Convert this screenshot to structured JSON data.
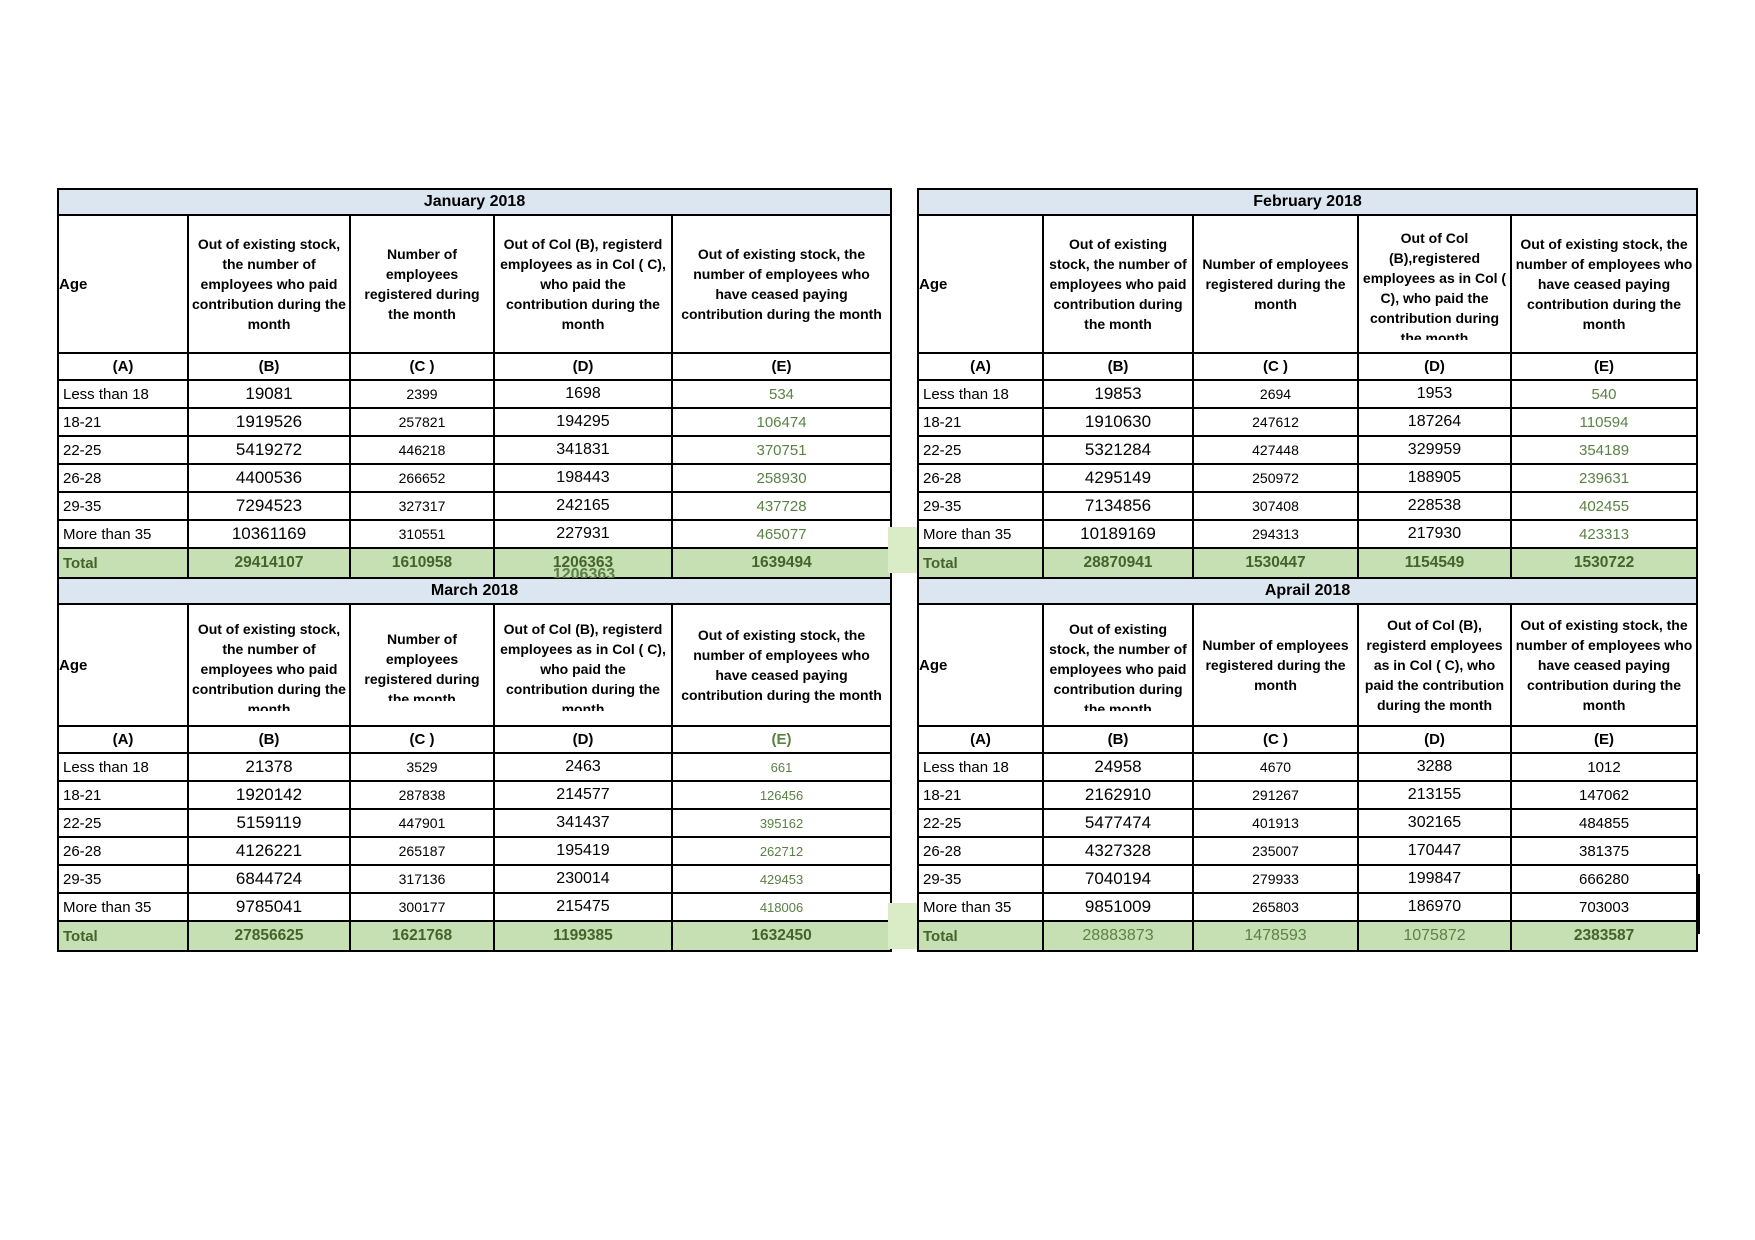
{
  "colors": {
    "title_bg": "#dce6f1",
    "total_bg": "#c6e0b4",
    "green_value_text": "#5a8144",
    "total_text": "#44632a",
    "border": "#000000"
  },
  "col_letters": [
    "(A)",
    "(B)",
    "(C )",
    "(D)",
    "(E)"
  ],
  "tables": [
    {
      "id": "tbl-january",
      "title": "January 2018",
      "headers": {
        "age": "Age",
        "b": "Out of existing stock, the number of employees who paid contribution during the month",
        "c": "Number of employees registered during the month",
        "d": "Out of Col (B), registerd employees as in Col ( C), who paid the contribution during the month",
        "e": "Out of existing stock, the number of employees who have ceased paying contribution during the month"
      },
      "rows": [
        {
          "age": "Less than 18",
          "b": "19081",
          "c": "2399",
          "d": "1698",
          "e": "534"
        },
        {
          "age": "18-21",
          "b": "1919526",
          "c": "257821",
          "d": "194295",
          "e": "106474"
        },
        {
          "age": "22-25",
          "b": "5419272",
          "c": "446218",
          "d": "341831",
          "e": "370751"
        },
        {
          "age": "26-28",
          "b": "4400536",
          "c": "266652",
          "d": "198443",
          "e": "258930"
        },
        {
          "age": "29-35",
          "b": "7294523",
          "c": "327317",
          "d": "242165",
          "e": "437728"
        },
        {
          "age": "More than 35",
          "b": "10361169",
          "c": "310551",
          "d": "227931",
          "e": "465077"
        }
      ],
      "total": {
        "age": "Total",
        "b": "29414107",
        "c": "1610958",
        "d": "1206363",
        "e": "1639494"
      }
    },
    {
      "id": "tbl-february",
      "title": "February 2018",
      "headers": {
        "age": "Age",
        "b": "Out of existing stock, the number of employees who paid contribution during the month",
        "c": "Number of employees registered during the month",
        "d": "Out of Col (B),registered employees as in Col ( C), who paid the contribution during the month",
        "e": "Out of existing stock, the number of employees who have ceased paying contribution during the month"
      },
      "rows": [
        {
          "age": "Less than 18",
          "b": "19853",
          "c": "2694",
          "d": "1953",
          "e": "540"
        },
        {
          "age": "18-21",
          "b": "1910630",
          "c": "247612",
          "d": "187264",
          "e": "110594"
        },
        {
          "age": "22-25",
          "b": "5321284",
          "c": "427448",
          "d": "329959",
          "e": "354189"
        },
        {
          "age": "26-28",
          "b": "4295149",
          "c": "250972",
          "d": "188905",
          "e": "239631"
        },
        {
          "age": "29-35",
          "b": "7134856",
          "c": "307408",
          "d": "228538",
          "e": "402455"
        },
        {
          "age": "More than 35",
          "b": "10189169",
          "c": "294313",
          "d": "217930",
          "e": "423313"
        }
      ],
      "total": {
        "age": "Total",
        "b": "28870941",
        "c": "1530447",
        "d": "1154549",
        "e": "1530722"
      }
    },
    {
      "id": "tbl-march",
      "title": "March 2018",
      "headers": {
        "age": "Age",
        "b": "Out of existing stock, the number of employees who paid contribution during the month",
        "c": "Number of employees registered during the month",
        "d": "Out of Col (B), registerd employees as in Col ( C), who paid the contribution during the month",
        "e": "Out of existing stock, the number of employees who have ceased paying contribution during the month"
      },
      "rows": [
        {
          "age": "Less than 18",
          "b": "21378",
          "c": "3529",
          "d": "2463",
          "e": "661"
        },
        {
          "age": "18-21",
          "b": "1920142",
          "c": "287838",
          "d": "214577",
          "e": "126456"
        },
        {
          "age": "22-25",
          "b": "5159119",
          "c": "447901",
          "d": "341437",
          "e": "395162"
        },
        {
          "age": "26-28",
          "b": "4126221",
          "c": "265187",
          "d": "195419",
          "e": "262712"
        },
        {
          "age": "29-35",
          "b": "6844724",
          "c": "317136",
          "d": "230014",
          "e": "429453"
        },
        {
          "age": "More than 35",
          "b": "9785041",
          "c": "300177",
          "d": "215475",
          "e": "418006"
        }
      ],
      "total": {
        "age": "Total",
        "b": "27856625",
        "c": "1621768",
        "d": "1199385",
        "e": "1632450"
      }
    },
    {
      "id": "tbl-april",
      "title": "Aprail 2018",
      "headers": {
        "age": "Age",
        "b": "Out of existing stock, the number of employees who paid contribution during the month",
        "c": "Number of employees registered during the month",
        "d": "Out of Col (B), registerd employees as in Col ( C), who paid the contribution during the month",
        "e": "Out of existing stock, the number of employees who have ceased paying contribution during the month"
      },
      "rows": [
        {
          "age": "Less than 18",
          "b": "24958",
          "c": "4670",
          "d": "3288",
          "e": "1012"
        },
        {
          "age": "18-21",
          "b": "2162910",
          "c": "291267",
          "d": "213155",
          "e": "147062"
        },
        {
          "age": "22-25",
          "b": "5477474",
          "c": "401913",
          "d": "302165",
          "e": "484855"
        },
        {
          "age": "26-28",
          "b": "4327328",
          "c": "235007",
          "d": "170447",
          "e": "381375"
        },
        {
          "age": "29-35",
          "b": "7040194",
          "c": "279933",
          "d": "199847",
          "e": "666280"
        },
        {
          "age": "More than 35",
          "b": "9851009",
          "c": "265803",
          "d": "186970",
          "e": "703003"
        }
      ],
      "total": {
        "age": "Total",
        "b": "28883873",
        "c": "1478593",
        "d": "1075872",
        "e": "2383587"
      }
    }
  ],
  "artifacts": {
    "overflow_number": "1206363"
  }
}
